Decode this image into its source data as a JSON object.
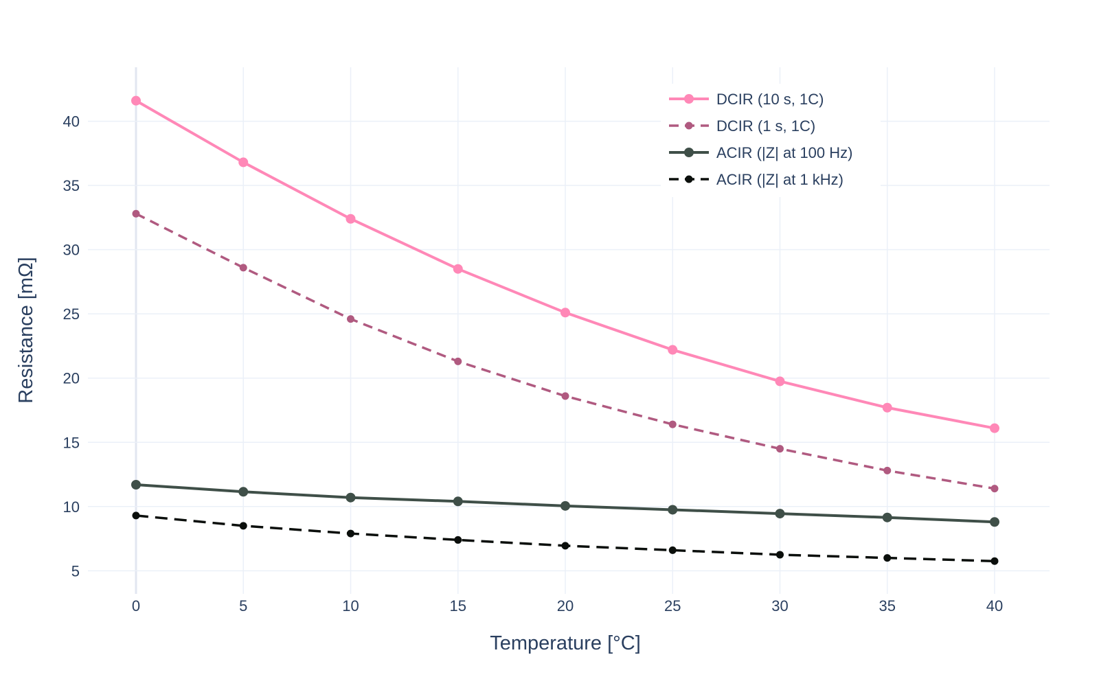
{
  "chart_data": {
    "type": "line",
    "title": "",
    "xlabel": "Temperature [°C]",
    "ylabel": "Resistance [mΩ]",
    "xlim": [
      -2.24,
      42.56
    ],
    "ylim": [
      3.2,
      44.2
    ],
    "xticks": [
      0,
      5,
      10,
      15,
      20,
      25,
      30,
      35,
      40
    ],
    "yticks": [
      5,
      10,
      15,
      20,
      25,
      30,
      35,
      40
    ],
    "grid": true,
    "legend_placement": "top-right",
    "x": [
      0,
      5,
      10,
      15,
      20,
      25,
      30,
      35,
      40
    ],
    "series": [
      {
        "name": "DCIR (10 s, 1C)",
        "color": "#ff88b7",
        "dash": "solid",
        "values": [
          41.6,
          36.8,
          32.4,
          28.5,
          25.1,
          22.2,
          19.75,
          17.7,
          16.1
        ]
      },
      {
        "name": "DCIR (1 s, 1C)",
        "color": "#b05a80",
        "dash": "dashed",
        "values": [
          32.8,
          28.6,
          24.6,
          21.3,
          18.6,
          16.4,
          14.5,
          12.8,
          11.4
        ]
      },
      {
        "name": "ACIR (|Z| at 100 Hz)",
        "color": "#3f4f48",
        "dash": "solid",
        "values": [
          11.7,
          11.15,
          10.7,
          10.4,
          10.05,
          9.75,
          9.45,
          9.15,
          8.8
        ]
      },
      {
        "name": "ACIR (|Z| at 1 kHz)",
        "color": "#0b0f0c",
        "dash": "dashed",
        "values": [
          9.3,
          8.5,
          7.9,
          7.4,
          6.95,
          6.6,
          6.25,
          6.0,
          5.75
        ]
      }
    ]
  }
}
